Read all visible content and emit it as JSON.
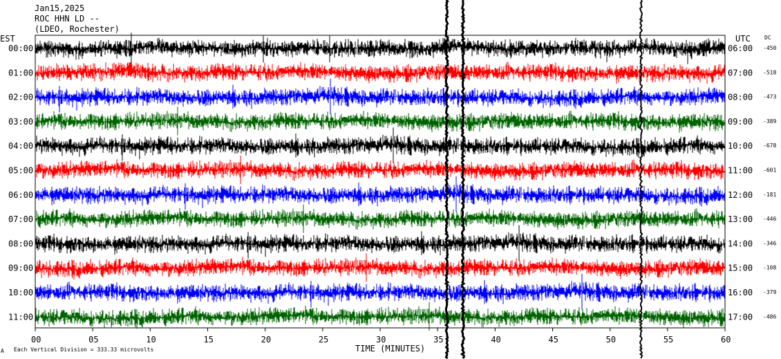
{
  "header": {
    "date": "Jan15,2025",
    "station": "ROC HHN LD --",
    "location": "(LDEO, Rochester)"
  },
  "left_axis_label": "EST",
  "right_axis_label": "UTC",
  "dc_label": "DC",
  "footer": {
    "division_note": "Each Vertical Division =  333.33 microvolts",
    "corner_mark": "A",
    "xlabel": "TIME (MINUTES)"
  },
  "colors": [
    "#000000",
    "#ff0000",
    "#0000ff",
    "#006400"
  ],
  "chart_data": {
    "type": "line",
    "title": "ROC HHN LD --",
    "xlabel": "TIME (MINUTES)",
    "ylabel": "",
    "xlim": [
      0,
      60
    ],
    "x_ticks": [
      "00",
      "05",
      "10",
      "15",
      "20",
      "25",
      "30",
      "35",
      "40",
      "45",
      "50",
      "55",
      "60"
    ],
    "grid": false,
    "series": [
      {
        "est": "00:00",
        "utc": "06:00",
        "dc": "-450"
      },
      {
        "est": "01:00",
        "utc": "07:00",
        "dc": "-518"
      },
      {
        "est": "02:00",
        "utc": "08:00",
        "dc": "-473"
      },
      {
        "est": "03:00",
        "utc": "09:00",
        "dc": "-389"
      },
      {
        "est": "04:00",
        "utc": "10:00",
        "dc": "-678"
      },
      {
        "est": "05:00",
        "utc": "11:00",
        "dc": "-601"
      },
      {
        "est": "06:00",
        "utc": "12:00",
        "dc": "-181"
      },
      {
        "est": "07:00",
        "utc": "13:00",
        "dc": "-446"
      },
      {
        "est": "08:00",
        "utc": "14:00",
        "dc": "-346"
      },
      {
        "est": "09:00",
        "utc": "15:00",
        "dc": "-108"
      },
      {
        "est": "10:00",
        "utc": "16:00",
        "dc": "-379"
      },
      {
        "est": "11:00",
        "utc": "17:00",
        "dc": "-486"
      }
    ],
    "events_minutes": [
      35.8,
      37.2,
      52.7
    ]
  }
}
